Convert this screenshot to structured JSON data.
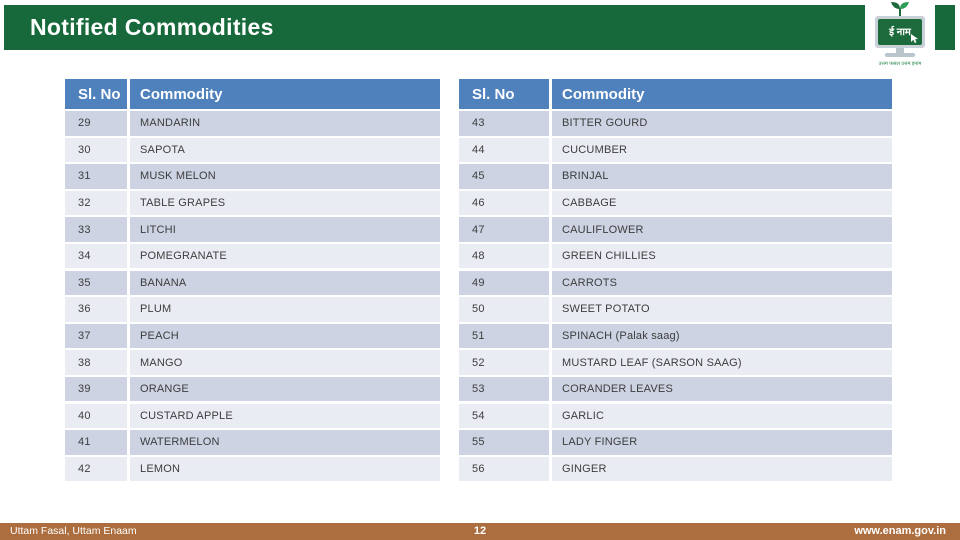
{
  "slide": {
    "title": "Notified Commodities"
  },
  "logo": {
    "screen_text": "ई नाम",
    "tagline": "उत्तम फसल उत्तम इनाम"
  },
  "tables": [
    {
      "headers": {
        "sl": "Sl. No",
        "commodity": "Commodity"
      },
      "rows": [
        {
          "no": "29",
          "name": "MANDARIN"
        },
        {
          "no": "30",
          "name": "SAPOTA"
        },
        {
          "no": "31",
          "name": "MUSK MELON"
        },
        {
          "no": "32",
          "name": "TABLE GRAPES"
        },
        {
          "no": "33",
          "name": "LITCHI"
        },
        {
          "no": "34",
          "name": "POMEGRANATE"
        },
        {
          "no": "35",
          "name": "BANANA"
        },
        {
          "no": "36",
          "name": "PLUM"
        },
        {
          "no": "37",
          "name": "PEACH"
        },
        {
          "no": "38",
          "name": "MANGO"
        },
        {
          "no": "39",
          "name": "ORANGE"
        },
        {
          "no": "40",
          "name": "CUSTARD APPLE"
        },
        {
          "no": "41",
          "name": "WATERMELON"
        },
        {
          "no": "42",
          "name": "LEMON"
        }
      ]
    },
    {
      "headers": {
        "sl": "Sl. No",
        "commodity": "Commodity"
      },
      "rows": [
        {
          "no": "43",
          "name": "BITTER GOURD"
        },
        {
          "no": "44",
          "name": "CUCUMBER"
        },
        {
          "no": "45",
          "name": "BRINJAL"
        },
        {
          "no": "46",
          "name": "CABBAGE"
        },
        {
          "no": "47",
          "name": "CAULIFLOWER"
        },
        {
          "no": "48",
          "name": "GREEN CHILLIES"
        },
        {
          "no": "49",
          "name": "CARROTS"
        },
        {
          "no": "50",
          "name": "SWEET POTATO"
        },
        {
          "no": "51",
          "name": "SPINACH (Palak saag)"
        },
        {
          "no": "52",
          "name": "MUSTARD LEAF (SARSON SAAG)"
        },
        {
          "no": "53",
          "name": "CORANDER LEAVES"
        },
        {
          "no": "54",
          "name": "GARLIC"
        },
        {
          "no": "55",
          "name": "LADY FINGER"
        },
        {
          "no": "56",
          "name": "GINGER"
        }
      ]
    }
  ],
  "footer": {
    "left_text": "Uttam Fasal, Uttam Enaam",
    "page_number": "12",
    "website": "www.enam.gov.in"
  },
  "colors": {
    "header_green": "#17693B",
    "table_header_blue": "#4F81BD",
    "row_dark": "#CDD3E2",
    "row_light": "#E9ECF3",
    "footer_brown": "#AC6E3F"
  }
}
